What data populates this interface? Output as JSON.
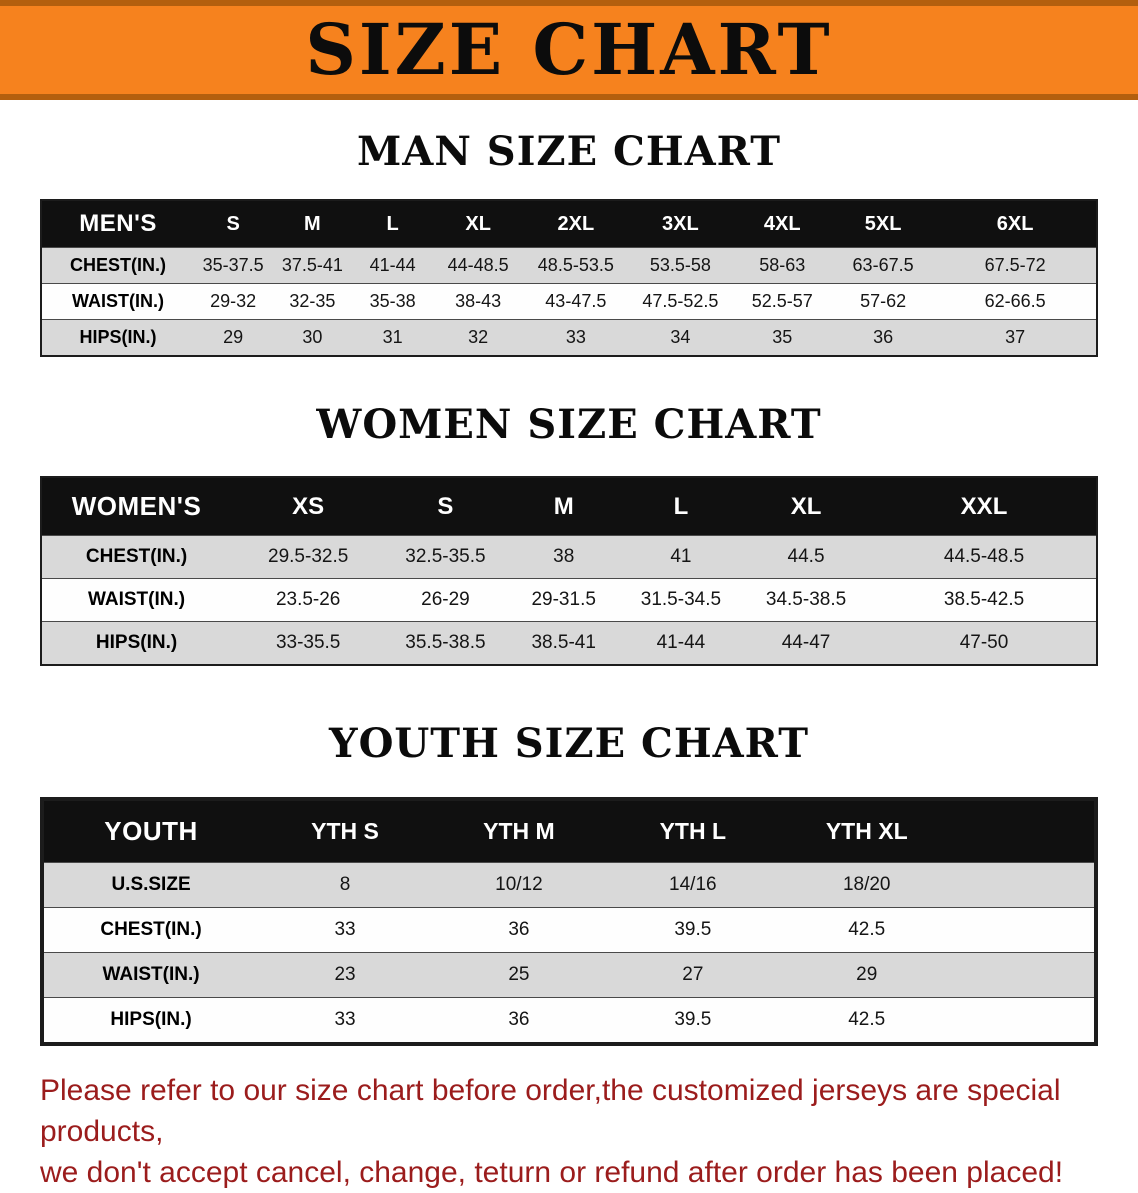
{
  "banner": {
    "title": "SIZE CHART"
  },
  "colors": {
    "banner_orange": "#F6821E",
    "table_header_black": "#101010",
    "row_gray": "#D9D9D9",
    "disclaimer_red": "#9B1C1C"
  },
  "sections": [
    {
      "heading": "MAN SIZE CHART",
      "table": {
        "header": [
          "MEN'S",
          "S",
          "M",
          "L",
          "XL",
          "2XL",
          "3XL",
          "4XL",
          "5XL",
          "6XL"
        ],
        "rows": [
          {
            "label": "CHEST(IN.)",
            "values": [
              "35-37.5",
              "37.5-41",
              "41-44",
              "44-48.5",
              "48.5-53.5",
              "53.5-58",
              "58-63",
              "63-67.5",
              "67.5-72"
            ]
          },
          {
            "label": "WAIST(IN.)",
            "values": [
              "29-32",
              "32-35",
              "35-38",
              "38-43",
              "43-47.5",
              "47.5-52.5",
              "52.5-57",
              "57-62",
              "62-66.5"
            ]
          },
          {
            "label": "HIPS(IN.)",
            "values": [
              "29",
              "30",
              "31",
              "32",
              "33",
              "34",
              "35",
              "36",
              "37"
            ]
          }
        ]
      }
    },
    {
      "heading": "WOMEN SIZE CHART",
      "table": {
        "header": [
          "WOMEN'S",
          "XS",
          "S",
          "M",
          "L",
          "XL",
          "XXL"
        ],
        "rows": [
          {
            "label": "CHEST(IN.)",
            "values": [
              "29.5-32.5",
              "32.5-35.5",
              "38",
              "41",
              "44.5",
              "44.5-48.5"
            ]
          },
          {
            "label": "WAIST(IN.)",
            "values": [
              "23.5-26",
              "26-29",
              "29-31.5",
              "31.5-34.5",
              "34.5-38.5",
              "38.5-42.5"
            ]
          },
          {
            "label": "HIPS(IN.)",
            "values": [
              "33-35.5",
              "35.5-38.5",
              "38.5-41",
              "41-44",
              "44-47",
              "47-50"
            ]
          }
        ]
      }
    },
    {
      "heading": "YOUTH SIZE CHART",
      "table": {
        "header": [
          "YOUTH",
          "YTH S",
          "YTH M",
          "YTH L",
          "YTH XL"
        ],
        "rows": [
          {
            "label": "U.S.SIZE",
            "values": [
              "8",
              "10/12",
              "14/16",
              "18/20"
            ]
          },
          {
            "label": "CHEST(IN.)",
            "values": [
              "33",
              "36",
              "39.5",
              "42.5"
            ]
          },
          {
            "label": "WAIST(IN.)",
            "values": [
              "23",
              "25",
              "27",
              "29"
            ]
          },
          {
            "label": "HIPS(IN.)",
            "values": [
              "33",
              "36",
              "39.5",
              "42.5"
            ]
          }
        ]
      }
    }
  ],
  "disclaimer": {
    "line1": "Please refer to our size chart before order,the customized jerseys are special products,",
    "line2": "we don't accept cancel, change, teturn or refund after order has been placed!"
  }
}
